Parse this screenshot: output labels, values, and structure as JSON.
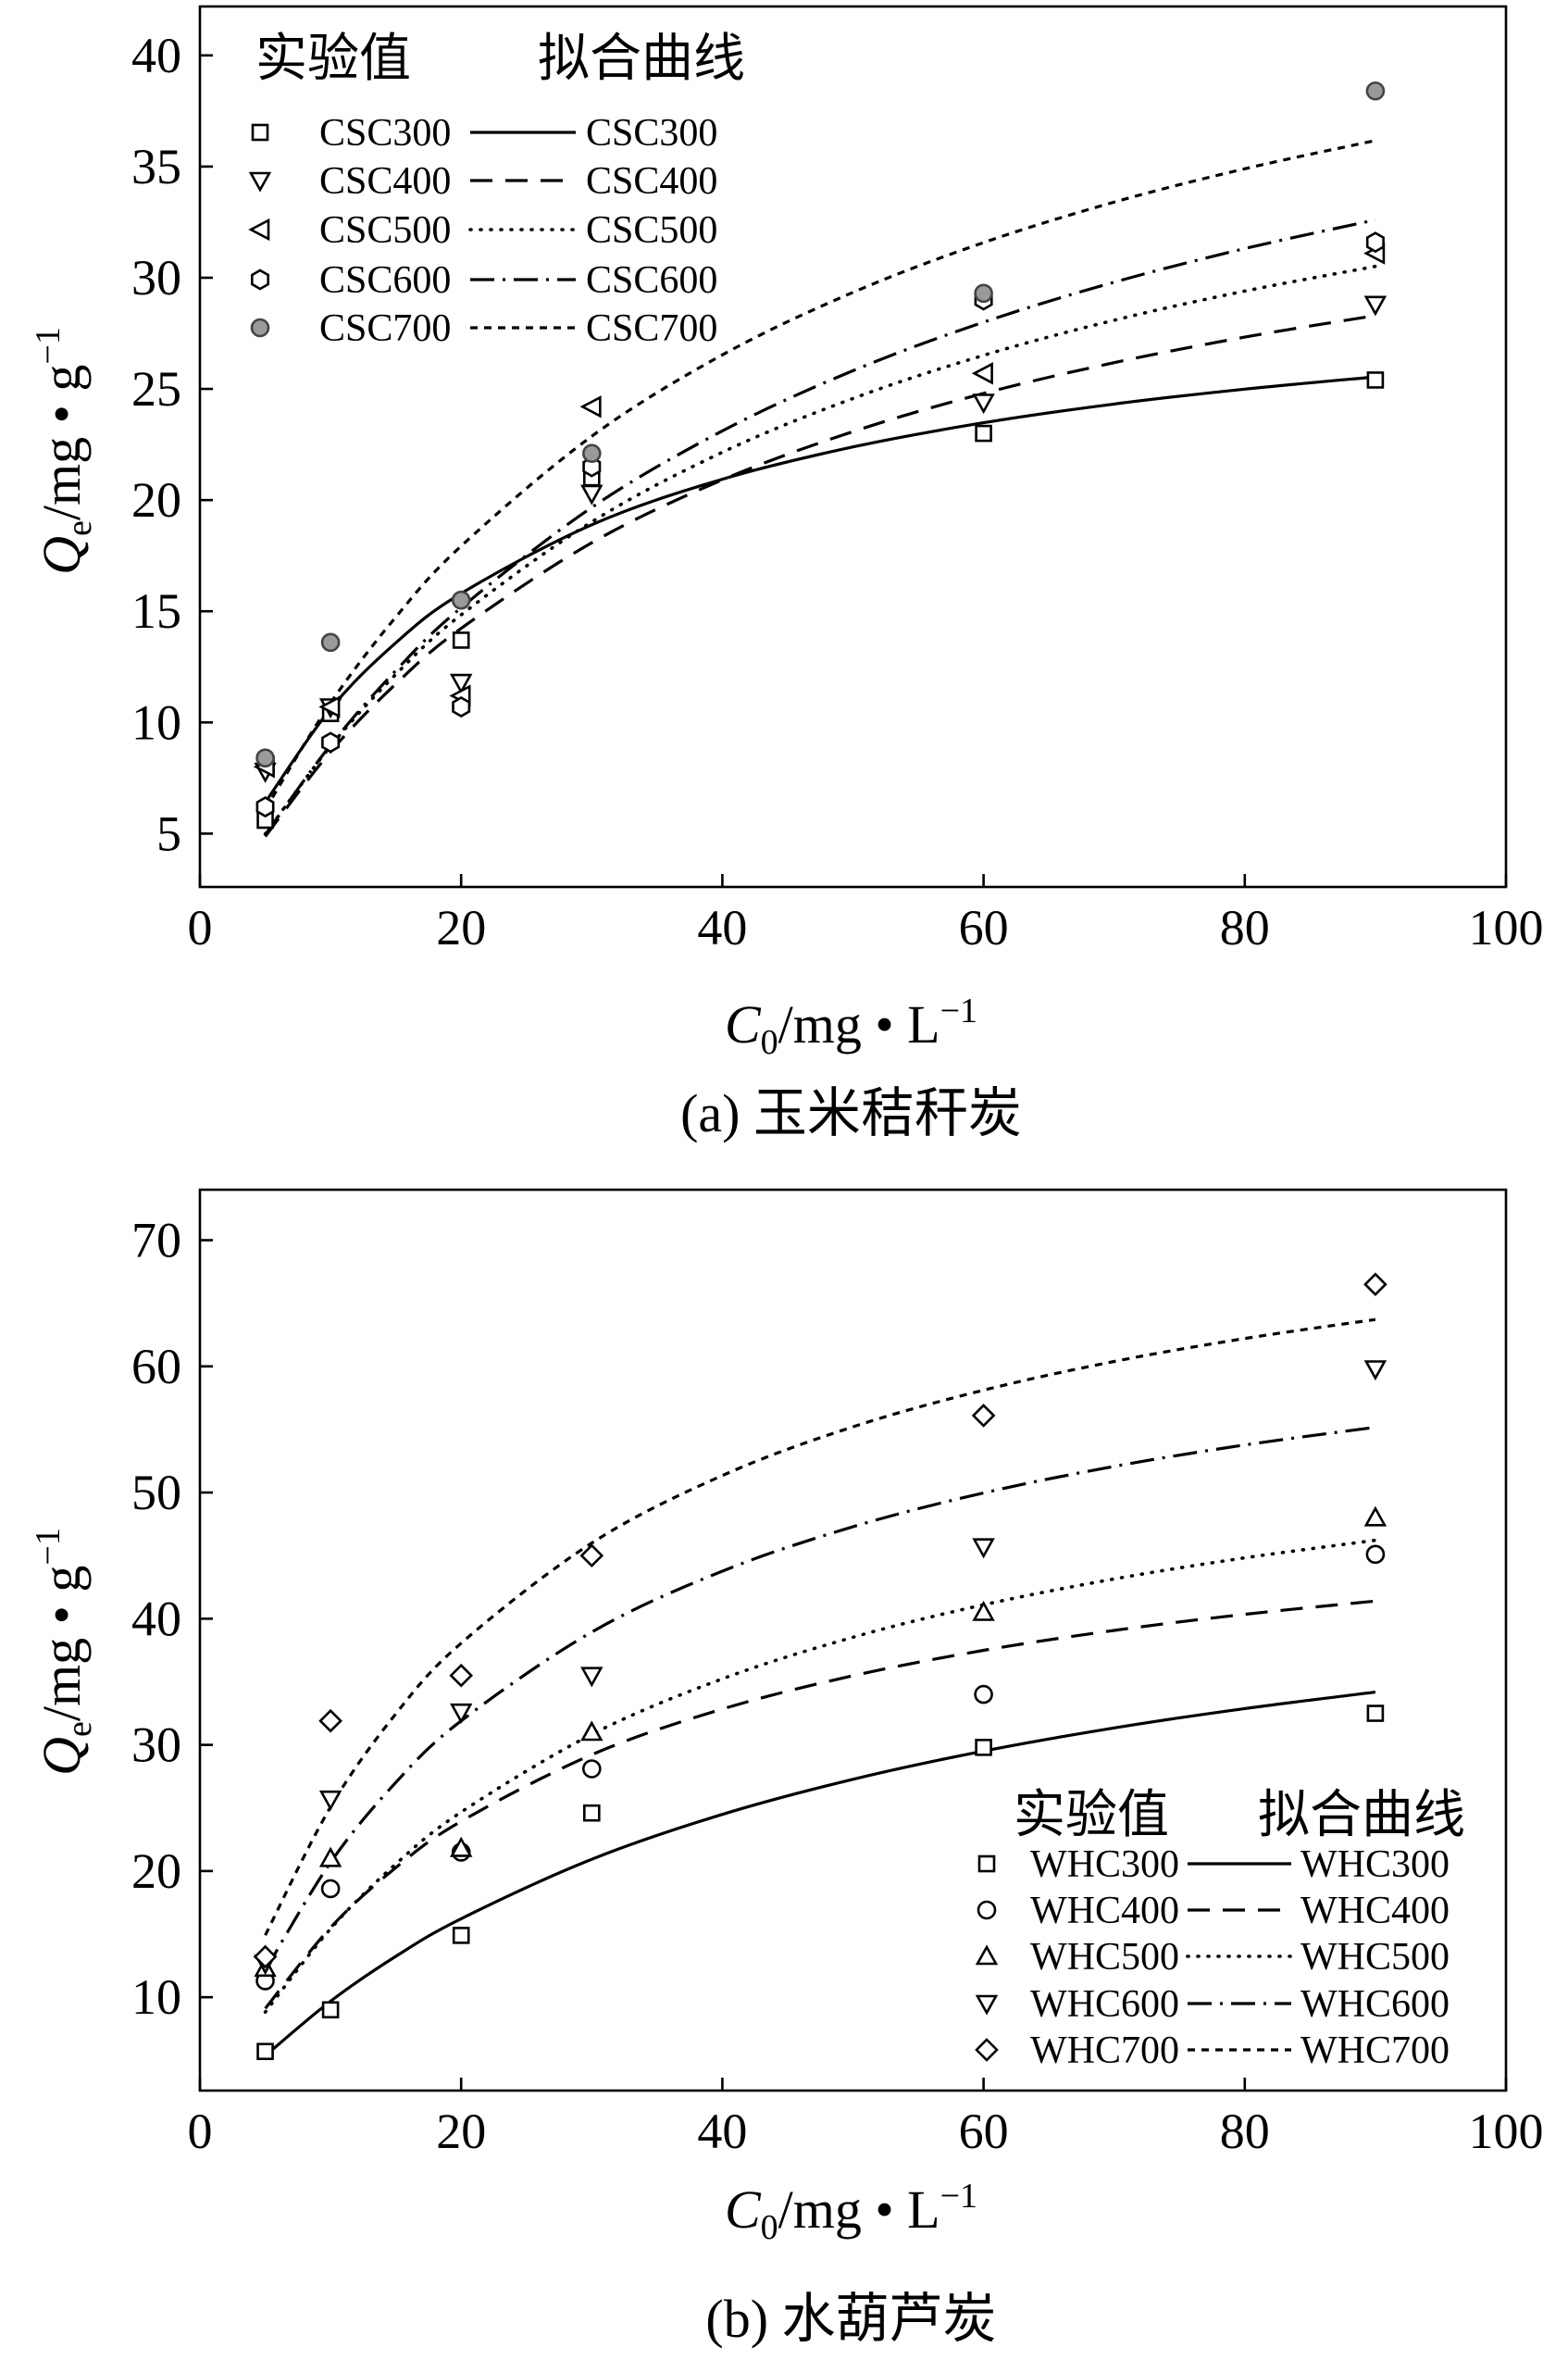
{
  "chart_data": [
    {
      "type": "scatter",
      "caption": "(a) 玉米秸秆炭",
      "xlabel": {
        "symbol": "C",
        "subscript": "0",
        "unit": "/mg • L",
        "superscript": "−1"
      },
      "ylabel": {
        "symbol": "Q",
        "subscript": "e",
        "unit": "/mg • g",
        "superscript": "−1"
      },
      "xlim": [
        0,
        100
      ],
      "ylim": [
        2.6,
        42.2
      ],
      "xticks": [
        0,
        20,
        40,
        60,
        80,
        100
      ],
      "yticks": [
        5,
        10,
        15,
        20,
        25,
        30,
        35,
        40
      ],
      "grid": false,
      "legend": {
        "position": "top-left",
        "experimental_header": "实验值",
        "fit_header": "拟合曲线"
      },
      "x_exp": [
        5,
        10,
        20,
        30,
        60,
        90
      ],
      "x_fit": [
        5,
        10,
        15,
        20,
        30,
        40,
        50,
        60,
        70,
        80,
        90
      ],
      "series": [
        {
          "name": "CSC300",
          "marker": "square",
          "marker_fill": "#ffffff",
          "line": "solid",
          "y_exp": [
            5.6,
            10.4,
            13.7,
            21.0,
            23.0,
            25.4
          ],
          "y_fit": [
            6.4,
            10.61,
            13.58,
            15.8,
            18.89,
            20.94,
            22.39,
            23.48,
            24.32,
            24.99,
            25.54
          ]
        },
        {
          "name": "CSC400",
          "marker": "triangle-down",
          "marker_fill": "#ffffff",
          "line": "dashed",
          "y_exp": [
            7.8,
            10.7,
            11.8,
            20.3,
            24.4,
            28.8
          ],
          "y_fit": [
            4.87,
            8.68,
            11.73,
            14.23,
            18.08,
            20.91,
            23.08,
            24.8,
            26.18,
            27.33,
            28.3
          ]
        },
        {
          "name": "CSC500",
          "marker": "triangle-left",
          "marker_fill": "#ffffff",
          "line": "dotted",
          "y_exp": [
            8.0,
            10.7,
            11.2,
            24.2,
            25.7,
            31.1
          ],
          "y_fit": [
            4.98,
            8.93,
            12.16,
            14.84,
            19.02,
            22.15,
            24.57,
            26.51,
            28.09,
            29.4,
            30.51
          ]
        },
        {
          "name": "CSC600",
          "marker": "hexagon",
          "marker_fill": "#ffffff",
          "line": "dash-dot",
          "y_exp": [
            6.2,
            9.1,
            10.7,
            21.5,
            29.0,
            31.6
          ],
          "y_fit": [
            4.95,
            8.98,
            12.33,
            15.16,
            19.67,
            23.11,
            25.82,
            28.0,
            29.8,
            31.31,
            32.6
          ]
        },
        {
          "name": "CSC700",
          "marker": "circle",
          "marker_fill": "#9a9a9a",
          "line": "short-dash",
          "y_exp": [
            8.4,
            13.6,
            15.5,
            22.1,
            29.3,
            38.4
          ],
          "y_fit": [
            6.09,
            10.87,
            14.74,
            17.93,
            22.87,
            26.53,
            29.34,
            31.58,
            33.4,
            34.9,
            36.17
          ]
        }
      ]
    },
    {
      "type": "scatter",
      "caption": "(b) 水葫芦炭",
      "xlabel": {
        "symbol": "C",
        "subscript": "0",
        "unit": "/mg • L",
        "superscript": "−1"
      },
      "ylabel": {
        "symbol": "Q",
        "subscript": "e",
        "unit": "/mg • g",
        "superscript": "−1"
      },
      "xlim": [
        0,
        100
      ],
      "ylim": [
        2.6,
        74.0
      ],
      "xticks": [
        0,
        20,
        40,
        60,
        80,
        100
      ],
      "yticks": [
        10,
        20,
        30,
        40,
        50,
        60,
        70
      ],
      "grid": false,
      "legend": {
        "position": "bottom-right",
        "experimental_header": "实验值",
        "fit_header": "拟合曲线"
      },
      "x_exp": [
        5,
        10,
        20,
        30,
        60,
        90
      ],
      "x_fit": [
        5,
        10,
        15,
        20,
        30,
        40,
        50,
        60,
        70,
        80,
        90
      ],
      "series": [
        {
          "name": "WHC300",
          "marker": "square",
          "marker_fill": "#ffffff",
          "line": "solid",
          "y_exp": [
            5.7,
            9.0,
            14.9,
            24.6,
            29.8,
            32.5
          ],
          "y_fit": [
            5.36,
            9.68,
            13.24,
            16.22,
            20.93,
            24.49,
            27.27,
            29.51,
            31.34,
            32.88,
            34.18
          ]
        },
        {
          "name": "WHC400",
          "marker": "circle",
          "marker_fill": "#ffffff",
          "line": "dashed",
          "y_exp": [
            11.3,
            18.6,
            21.5,
            28.1,
            34.0,
            45.1
          ],
          "y_fit": [
            9.11,
            15.52,
            20.27,
            23.94,
            29.22,
            32.84,
            35.48,
            37.49,
            39.07,
            40.35,
            41.4
          ]
        },
        {
          "name": "WHC500",
          "marker": "triangle-up",
          "marker_fill": "#ffffff",
          "line": "dotted",
          "y_exp": [
            12.3,
            21.0,
            21.8,
            31.0,
            40.5,
            48.0
          ],
          "y_fit": [
            8.82,
            15.42,
            20.56,
            24.67,
            30.83,
            35.23,
            38.53,
            41.1,
            43.15,
            44.82,
            46.22
          ]
        },
        {
          "name": "WHC600",
          "marker": "triangle-down",
          "marker_fill": "#ffffff",
          "line": "dash-dot",
          "y_exp": [
            12.7,
            25.7,
            32.6,
            35.5,
            45.7,
            59.8
          ],
          "y_fit": [
            12.14,
            20.68,
            27.02,
            31.9,
            38.94,
            43.77,
            47.29,
            49.97,
            52.07,
            53.77,
            55.17
          ]
        },
        {
          "name": "WHC700",
          "marker": "diamond",
          "marker_fill": "#ffffff",
          "line": "short-dash",
          "y_exp": [
            13.2,
            31.9,
            35.5,
            45.0,
            56.1,
            66.5
          ],
          "y_fit": [
            14.91,
            25.08,
            32.46,
            38.06,
            46.0,
            51.35,
            55.21,
            58.11,
            60.39,
            62.21,
            63.71
          ]
        }
      ]
    }
  ]
}
